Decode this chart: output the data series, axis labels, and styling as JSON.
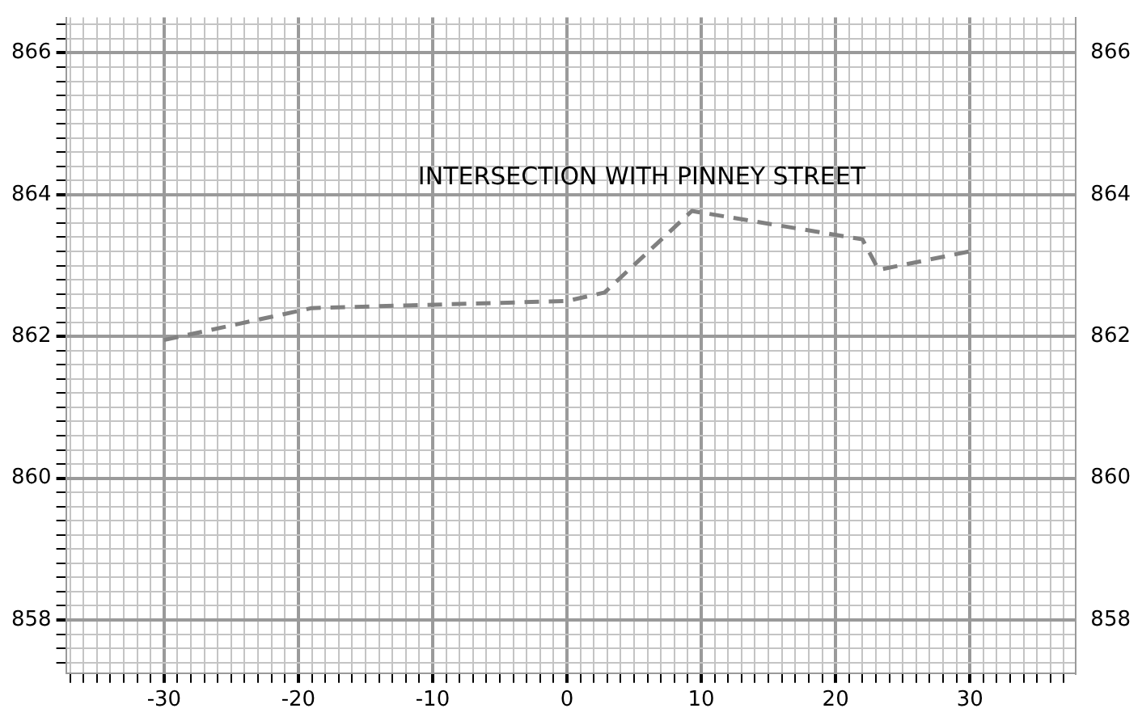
{
  "chart_data": {
    "type": "line",
    "annotations": [
      "INTERSECTION WITH PINNEY STREET"
    ],
    "x": [
      -30,
      -19,
      0,
      2.8,
      9.3,
      22,
      23.2,
      30
    ],
    "series": [
      {
        "color": "#808080",
        "values": [
          861.95,
          862.4,
          862.5,
          862.62,
          863.77,
          863.37,
          862.94,
          863.2
        ]
      }
    ],
    "line_style": "dashed",
    "marker": "none",
    "grid": true,
    "legend": false,
    "xlim": [
      -37.3,
      37.9
    ],
    "xticks": [
      {
        "value": -37,
        "label": null
      },
      {
        "value": -36,
        "label": null
      },
      {
        "value": -35,
        "label": null
      },
      {
        "value": -34,
        "label": null
      },
      {
        "value": -33,
        "label": null
      },
      {
        "value": -32,
        "label": null
      },
      {
        "value": -31,
        "label": null
      },
      -30,
      {
        "value": -29,
        "label": null
      },
      {
        "value": -28,
        "label": null
      },
      {
        "value": -27,
        "label": null
      },
      {
        "value": -26,
        "label": null
      },
      {
        "value": -25,
        "label": null
      },
      {
        "value": -24,
        "label": null
      },
      {
        "value": -23,
        "label": null
      },
      {
        "value": -22,
        "label": null
      },
      {
        "value": -21,
        "label": null
      },
      -20,
      {
        "value": -19,
        "label": null
      },
      {
        "value": -18,
        "label": null
      },
      {
        "value": -17,
        "label": null
      },
      {
        "value": -16,
        "label": null
      },
      {
        "value": -15,
        "label": null
      },
      {
        "value": -14,
        "label": null
      },
      {
        "value": -13,
        "label": null
      },
      {
        "value": -12,
        "label": null
      },
      {
        "value": -11,
        "label": null
      },
      -10,
      {
        "value": -9,
        "label": null
      },
      {
        "value": -8,
        "label": null
      },
      {
        "value": -7,
        "label": null
      },
      {
        "value": -6,
        "label": null
      },
      {
        "value": -5,
        "label": null
      },
      {
        "value": -4,
        "label": null
      },
      {
        "value": -3,
        "label": null
      },
      {
        "value": -2,
        "label": null
      },
      {
        "value": -1,
        "label": null
      },
      0,
      {
        "value": 1,
        "label": null
      },
      {
        "value": 2,
        "label": null
      },
      {
        "value": 3,
        "label": null
      },
      {
        "value": 4,
        "label": null
      },
      {
        "value": 5,
        "label": null
      },
      {
        "value": 6,
        "label": null
      },
      {
        "value": 7,
        "label": null
      },
      {
        "value": 8,
        "label": null
      },
      {
        "value": 9,
        "label": null
      },
      10,
      {
        "value": 11,
        "label": null
      },
      {
        "value": 12,
        "label": null
      },
      {
        "value": 13,
        "label": null
      },
      {
        "value": 14,
        "label": null
      },
      {
        "value": 15,
        "label": null
      },
      {
        "value": 16,
        "label": null
      },
      {
        "value": 17,
        "label": null
      },
      {
        "value": 18,
        "label": null
      },
      {
        "value": 19,
        "label": null
      },
      20,
      {
        "value": 21,
        "label": null
      },
      {
        "value": 22,
        "label": null
      },
      {
        "value": 23,
        "label": null
      },
      {
        "value": 24,
        "label": null
      },
      {
        "value": 25,
        "label": null
      },
      {
        "value": 26,
        "label": null
      },
      {
        "value": 27,
        "label": null
      },
      {
        "value": 28,
        "label": null
      },
      {
        "value": 29,
        "label": null
      },
      30,
      {
        "value": 31,
        "label": null
      },
      {
        "value": 32,
        "label": null
      },
      {
        "value": 33,
        "label": null
      },
      {
        "value": 34,
        "label": null
      },
      {
        "value": 35,
        "label": null
      },
      {
        "value": 36,
        "label": null
      },
      {
        "value": 37,
        "label": null
      }
    ],
    "ylim": [
      857.25,
      866.5
    ],
    "yticks": [
      {
        "value": 857.4,
        "label": null
      },
      {
        "value": 857.6,
        "label": null
      },
      {
        "value": 857.8,
        "label": null
      },
      858,
      {
        "value": 858.2,
        "label": null
      },
      {
        "value": 858.4,
        "label": null
      },
      {
        "value": 858.6,
        "label": null
      },
      {
        "value": 858.8,
        "label": null
      },
      {
        "value": 859,
        "label": null
      },
      {
        "value": 859.2,
        "label": null
      },
      {
        "value": 859.4,
        "label": null
      },
      {
        "value": 859.6,
        "label": null
      },
      {
        "value": 859.8,
        "label": null
      },
      860,
      {
        "value": 860.2,
        "label": null
      },
      {
        "value": 860.4,
        "label": null
      },
      {
        "value": 860.6,
        "label": null
      },
      {
        "value": 860.8,
        "label": null
      },
      {
        "value": 861,
        "label": null
      },
      {
        "value": 861.2,
        "label": null
      },
      {
        "value": 861.4,
        "label": null
      },
      {
        "value": 861.6,
        "label": null
      },
      {
        "value": 861.8,
        "label": null
      },
      862,
      {
        "value": 862.2,
        "label": null
      },
      {
        "value": 862.4,
        "label": null
      },
      {
        "value": 862.6,
        "label": null
      },
      {
        "value": 862.8,
        "label": null
      },
      {
        "value": 863,
        "label": null
      },
      {
        "value": 863.2,
        "label": null
      },
      {
        "value": 863.4,
        "label": null
      },
      {
        "value": 863.6,
        "label": null
      },
      {
        "value": 863.8,
        "label": null
      },
      864,
      {
        "value": 864.2,
        "label": null
      },
      {
        "value": 864.4,
        "label": null
      },
      {
        "value": 864.6,
        "label": null
      },
      {
        "value": 864.8,
        "label": null
      },
      {
        "value": 865,
        "label": null
      },
      {
        "value": 865.2,
        "label": null
      },
      {
        "value": 865.4,
        "label": null
      },
      {
        "value": 865.6,
        "label": null
      },
      {
        "value": 865.8,
        "label": null
      },
      866,
      {
        "value": 866.2,
        "label": null
      },
      {
        "value": 866.4,
        "label": null
      }
    ],
    "y2lim": [
      857.25,
      866.5
    ],
    "y2ticks": [
      858,
      860,
      862,
      864,
      866
    ]
  }
}
